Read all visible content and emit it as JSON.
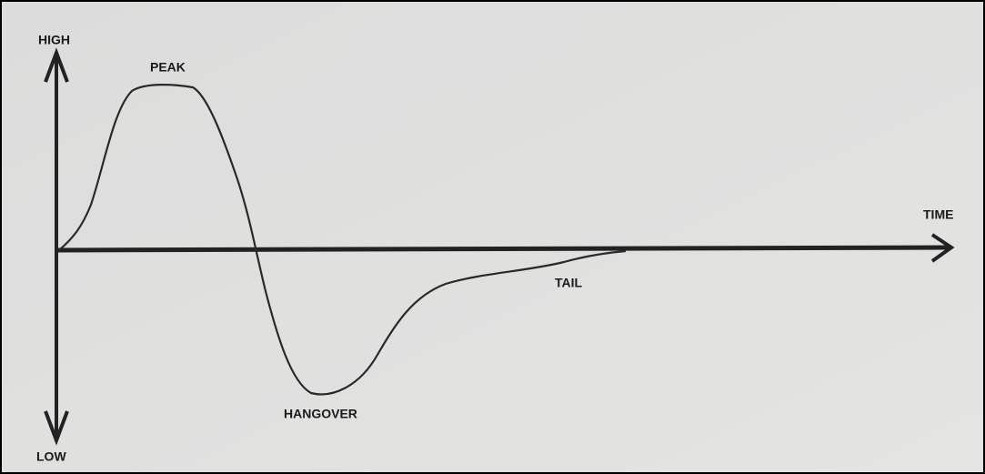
{
  "labels": {
    "high": "HIGH",
    "low": "LOW",
    "peak": "PEAK",
    "time": "TIME",
    "tail": "TAIL",
    "hangover": "HANGOVER"
  }
}
